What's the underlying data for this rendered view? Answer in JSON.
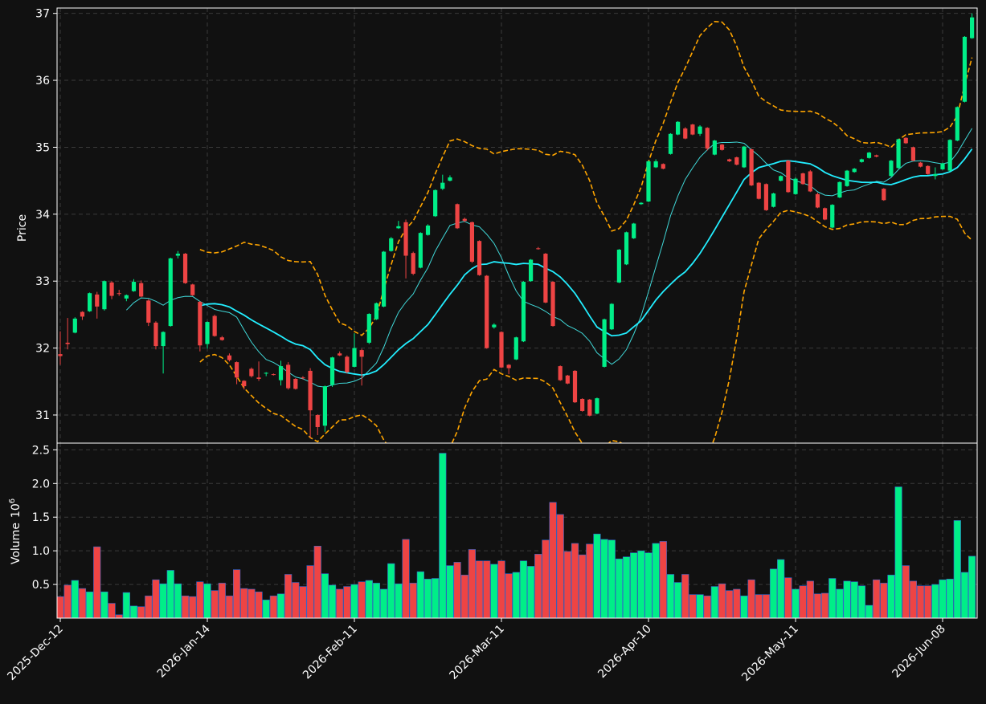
{
  "chart_data": {
    "type": "candlestick",
    "price_panel": {
      "ylabel": "Price",
      "ylim": [
        30.58,
        37.08
      ],
      "yticks": [
        31,
        32,
        33,
        34,
        35,
        36,
        37
      ],
      "ytick_labels": [
        "31",
        "32",
        "33",
        "34",
        "35",
        "36",
        "37"
      ]
    },
    "volume_panel": {
      "ylabel": "Volume",
      "ylabel_exp": "10",
      "ylabel_exp_power": "6",
      "ylim": [
        0,
        2.6
      ],
      "yticks": [
        0.5,
        1.0,
        1.5,
        2.0,
        2.5
      ],
      "ytick_labels": [
        "0.5",
        "1.0",
        "1.5",
        "2.0",
        "2.5"
      ]
    },
    "x_ticks": [
      {
        "index": 0,
        "label": "2025-Dec-12"
      },
      {
        "index": 20,
        "label": "2026-Jan-14"
      },
      {
        "index": 40,
        "label": "2026-Feb-11"
      },
      {
        "index": 60,
        "label": "2026-Mar-11"
      },
      {
        "index": 80,
        "label": "2026-Apr-10"
      },
      {
        "index": 100,
        "label": "2026-May-11"
      },
      {
        "index": 120,
        "label": "2026-Jun-08"
      }
    ],
    "n_bars": 125,
    "grid": true,
    "colors": {
      "background": "#111111",
      "up": "#00ee88",
      "down": "#ee4444",
      "volume_edge": "#3366cc",
      "ma_fast": "#40d8d8",
      "ma_slow": "#22eeff",
      "bollinger": "#ffa500",
      "grid": "#3a3a3a",
      "text": "#ffffff"
    },
    "candles": [
      [
        31.91,
        31.88,
        32.25,
        31.75
      ],
      [
        32.08,
        32.06,
        32.45,
        31.98
      ],
      [
        32.23,
        32.44,
        32.46,
        32.22
      ],
      [
        32.54,
        32.47,
        32.55,
        32.42
      ],
      [
        32.55,
        32.82,
        32.83,
        32.54
      ],
      [
        32.8,
        32.62,
        32.84,
        32.44
      ],
      [
        32.58,
        33.0,
        33.01,
        32.56
      ],
      [
        32.98,
        32.78,
        33.0,
        32.73
      ],
      [
        32.82,
        32.81,
        32.87,
        32.78
      ],
      [
        32.74,
        32.79,
        32.8,
        32.7
      ],
      [
        32.85,
        32.99,
        33.03,
        32.84
      ],
      [
        32.97,
        32.77,
        33.01,
        32.76
      ],
      [
        32.71,
        32.38,
        32.73,
        32.33
      ],
      [
        32.38,
        32.03,
        32.4,
        31.98
      ],
      [
        32.03,
        32.24,
        32.25,
        31.62
      ],
      [
        32.33,
        33.34,
        33.35,
        32.32
      ],
      [
        33.38,
        33.41,
        33.45,
        33.34
      ],
      [
        33.41,
        32.97,
        33.42,
        32.96
      ],
      [
        32.95,
        32.79,
        32.96,
        32.78
      ],
      [
        32.69,
        32.04,
        32.7,
        31.95
      ],
      [
        32.06,
        32.39,
        32.4,
        31.99
      ],
      [
        32.48,
        32.18,
        32.5,
        32.17
      ],
      [
        32.16,
        32.12,
        32.18,
        32.11
      ],
      [
        31.89,
        31.82,
        31.92,
        31.8
      ],
      [
        31.79,
        31.56,
        31.8,
        31.46
      ],
      [
        31.51,
        31.43,
        31.52,
        31.38
      ],
      [
        31.69,
        31.58,
        31.71,
        31.56
      ],
      [
        31.56,
        31.54,
        31.8,
        31.51
      ],
      [
        31.63,
        31.63,
        31.64,
        31.58
      ],
      [
        31.61,
        31.6,
        31.62,
        31.59
      ],
      [
        31.52,
        31.73,
        31.81,
        31.44
      ],
      [
        31.75,
        31.4,
        31.79,
        31.38
      ],
      [
        31.54,
        31.39,
        31.55,
        31.38
      ],
      [
        31.56,
        31.55,
        31.58,
        31.53
      ],
      [
        31.66,
        31.07,
        31.7,
        30.66
      ],
      [
        31.0,
        30.82,
        31.01,
        30.7
      ],
      [
        30.84,
        31.43,
        31.44,
        30.75
      ],
      [
        31.45,
        31.86,
        31.87,
        31.42
      ],
      [
        31.92,
        31.89,
        31.95,
        31.88
      ],
      [
        31.87,
        31.64,
        31.89,
        31.62
      ],
      [
        31.72,
        32.0,
        32.22,
        31.71
      ],
      [
        31.97,
        31.87,
        31.99,
        31.44
      ],
      [
        32.08,
        32.51,
        32.52,
        32.06
      ],
      [
        32.43,
        32.67,
        32.68,
        32.42
      ],
      [
        32.62,
        33.44,
        33.45,
        32.61
      ],
      [
        33.45,
        33.64,
        33.66,
        33.44
      ],
      [
        33.79,
        33.82,
        33.9,
        33.78
      ],
      [
        33.88,
        33.38,
        33.92,
        33.04
      ],
      [
        33.42,
        33.11,
        33.44,
        33.09
      ],
      [
        33.2,
        33.72,
        33.73,
        33.19
      ],
      [
        33.69,
        33.83,
        33.85,
        33.68
      ],
      [
        33.97,
        34.36,
        34.37,
        33.96
      ],
      [
        34.38,
        34.47,
        34.59,
        34.36
      ],
      [
        34.5,
        34.55,
        34.58,
        34.49
      ],
      [
        34.15,
        33.79,
        34.16,
        33.78
      ],
      [
        33.93,
        33.9,
        33.95,
        33.88
      ],
      [
        33.88,
        33.29,
        33.89,
        33.27
      ],
      [
        33.6,
        33.09,
        33.61,
        33.08
      ],
      [
        33.08,
        32.0,
        33.09,
        31.99
      ],
      [
        32.31,
        32.35,
        32.37,
        32.29
      ],
      [
        32.24,
        31.71,
        32.25,
        31.7
      ],
      [
        31.75,
        31.7,
        31.76,
        31.61
      ],
      [
        31.83,
        32.16,
        32.17,
        31.82
      ],
      [
        32.1,
        32.99,
        33.0,
        32.09
      ],
      [
        33.0,
        33.32,
        33.33,
        32.99
      ],
      [
        33.49,
        33.48,
        33.51,
        33.47
      ],
      [
        33.41,
        32.68,
        33.42,
        32.67
      ],
      [
        32.99,
        32.33,
        33.0,
        32.32
      ],
      [
        31.73,
        31.52,
        31.74,
        31.51
      ],
      [
        31.59,
        31.47,
        31.6,
        31.46
      ],
      [
        31.66,
        31.19,
        31.67,
        31.18
      ],
      [
        31.24,
        31.06,
        31.25,
        31.05
      ],
      [
        31.23,
        30.99,
        31.24,
        30.98
      ],
      [
        31.02,
        31.25,
        31.26,
        31.01
      ],
      [
        31.72,
        32.43,
        32.44,
        31.71
      ],
      [
        32.28,
        32.66,
        32.67,
        32.27
      ],
      [
        32.98,
        33.47,
        33.48,
        32.97
      ],
      [
        33.25,
        33.73,
        33.74,
        33.24
      ],
      [
        33.64,
        33.86,
        33.87,
        33.63
      ],
      [
        34.15,
        34.17,
        34.18,
        34.14
      ],
      [
        34.19,
        34.79,
        34.8,
        34.18
      ],
      [
        34.7,
        34.79,
        34.82,
        34.69
      ],
      [
        34.75,
        34.68,
        34.76,
        34.67
      ],
      [
        34.9,
        35.2,
        35.21,
        34.89
      ],
      [
        35.19,
        35.38,
        35.39,
        35.18
      ],
      [
        35.28,
        35.13,
        35.3,
        35.12
      ],
      [
        35.34,
        35.19,
        35.35,
        35.18
      ],
      [
        35.2,
        35.31,
        35.33,
        35.17
      ],
      [
        35.29,
        34.98,
        35.3,
        34.95
      ],
      [
        34.89,
        35.1,
        35.11,
        34.88
      ],
      [
        35.04,
        34.96,
        35.05,
        34.95
      ],
      [
        34.82,
        34.79,
        34.83,
        34.78
      ],
      [
        34.85,
        34.74,
        34.86,
        34.73
      ],
      [
        34.7,
        35.01,
        35.02,
        34.69
      ],
      [
        34.97,
        34.43,
        34.98,
        34.42
      ],
      [
        34.47,
        34.23,
        34.48,
        34.22
      ],
      [
        34.45,
        34.06,
        34.46,
        34.05
      ],
      [
        34.11,
        34.31,
        34.32,
        34.1
      ],
      [
        34.5,
        34.57,
        34.58,
        34.49
      ],
      [
        34.8,
        34.33,
        34.81,
        34.32
      ],
      [
        34.3,
        34.53,
        34.55,
        34.29
      ],
      [
        34.61,
        34.45,
        34.62,
        34.44
      ],
      [
        34.64,
        34.34,
        34.66,
        34.33
      ],
      [
        34.3,
        34.1,
        34.32,
        34.09
      ],
      [
        34.09,
        33.92,
        34.1,
        33.91
      ],
      [
        33.8,
        34.14,
        34.15,
        33.79
      ],
      [
        34.25,
        34.48,
        34.49,
        34.24
      ],
      [
        34.42,
        34.65,
        34.66,
        34.41
      ],
      [
        34.63,
        34.68,
        34.69,
        34.62
      ],
      [
        34.78,
        34.82,
        34.83,
        34.77
      ],
      [
        34.84,
        34.92,
        34.93,
        34.83
      ],
      [
        34.88,
        34.86,
        34.89,
        34.85
      ],
      [
        34.38,
        34.21,
        34.39,
        34.2
      ],
      [
        34.57,
        34.8,
        34.81,
        34.56
      ],
      [
        34.69,
        35.12,
        35.13,
        34.68
      ],
      [
        35.14,
        35.06,
        35.15,
        35.05
      ],
      [
        35.0,
        34.8,
        35.01,
        34.79
      ],
      [
        34.77,
        34.71,
        34.78,
        34.7
      ],
      [
        34.72,
        34.6,
        34.73,
        34.59
      ],
      [
        34.57,
        34.6,
        34.7,
        34.52
      ],
      [
        34.67,
        34.76,
        34.77,
        34.66
      ],
      [
        34.65,
        35.11,
        35.12,
        34.64
      ],
      [
        35.1,
        35.6,
        35.61,
        35.09
      ],
      [
        35.68,
        36.65,
        36.66,
        35.67
      ],
      [
        36.63,
        36.94,
        37.0,
        36.62
      ]
    ],
    "volume": [
      0.32,
      0.49,
      0.56,
      0.44,
      0.39,
      1.06,
      0.39,
      0.22,
      0.05,
      0.38,
      0.18,
      0.17,
      0.33,
      0.57,
      0.51,
      0.71,
      0.51,
      0.33,
      0.32,
      0.54,
      0.51,
      0.41,
      0.52,
      0.33,
      0.72,
      0.44,
      0.43,
      0.39,
      0.27,
      0.33,
      0.36,
      0.65,
      0.53,
      0.47,
      0.78,
      1.07,
      0.66,
      0.49,
      0.43,
      0.47,
      0.5,
      0.54,
      0.56,
      0.52,
      0.43,
      0.81,
      0.51,
      1.17,
      0.52,
      0.69,
      0.58,
      0.59,
      2.45,
      0.78,
      0.83,
      0.64,
      1.02,
      0.85,
      0.85,
      0.8,
      0.85,
      0.66,
      0.68,
      0.85,
      0.77,
      0.95,
      1.16,
      1.72,
      1.54,
      0.99,
      1.11,
      0.94,
      1.1,
      1.25,
      1.17,
      1.16,
      0.88,
      0.91,
      0.97,
      1.0,
      0.97,
      1.11,
      1.14,
      0.65,
      0.53,
      0.65,
      0.35,
      0.35,
      0.33,
      0.47,
      0.51,
      0.41,
      0.43,
      0.33,
      0.57,
      0.35,
      0.35,
      0.73,
      0.87,
      0.6,
      0.43,
      0.48,
      0.55,
      0.36,
      0.37,
      0.59,
      0.43,
      0.55,
      0.54,
      0.48,
      0.19,
      0.57,
      0.52,
      0.64,
      1.95,
      0.78,
      0.55,
      0.48,
      0.48,
      0.5,
      0.57,
      0.58,
      1.45,
      0.68,
      0.92
    ],
    "ma_fast": {
      "period": 10
    },
    "ma_slow": {
      "period": 20
    },
    "bollinger": {
      "period": 20,
      "k": 2
    }
  }
}
